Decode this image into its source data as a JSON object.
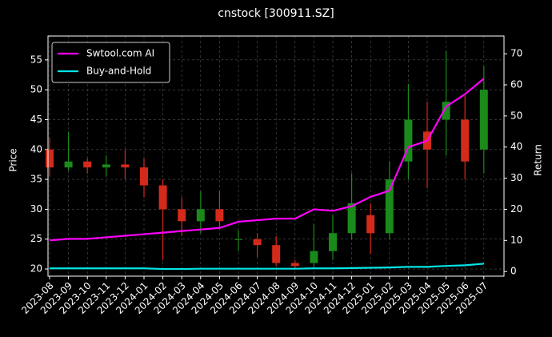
{
  "chart_data": {
    "type": "candlestick",
    "title": "cnstock [300911.SZ]",
    "ylabel": "Price",
    "y2label": "Return",
    "categories": [
      "2023-08",
      "2023-09",
      "2023-10",
      "2023-11",
      "2023-12",
      "2024-01",
      "2024-02",
      "2024-03",
      "2024-04",
      "2024-05",
      "2024-06",
      "2024-07",
      "2024-08",
      "2024-09",
      "2024-10",
      "2024-11",
      "2024-12",
      "2025-01",
      "2025-02",
      "2025-03",
      "2025-04",
      "2025-05",
      "2025-06",
      "2025-07"
    ],
    "candles": {
      "open": [
        40,
        37,
        38,
        37,
        37.5,
        37,
        34,
        30,
        28,
        30,
        25,
        25,
        24,
        21,
        21,
        23,
        26,
        29,
        26,
        38,
        43,
        45,
        45,
        40
      ],
      "high": [
        42,
        43,
        38.5,
        39,
        40,
        38.5,
        35,
        32,
        33,
        33,
        26.5,
        26,
        25.5,
        21.5,
        27.5,
        29,
        36,
        31,
        38,
        51,
        48,
        56.5,
        49,
        54
      ],
      "low": [
        35.5,
        36.5,
        36,
        35.5,
        35,
        32,
        21.5,
        25.5,
        26,
        27,
        23,
        22,
        20.5,
        20,
        20,
        21.5,
        25,
        22.5,
        25,
        35,
        33.5,
        39,
        35,
        36
      ],
      "close": [
        37,
        38,
        37,
        37.5,
        37,
        34,
        30,
        28,
        30,
        28,
        25,
        24,
        21,
        20.5,
        23,
        26,
        31,
        26,
        35,
        45,
        40,
        48,
        38,
        50
      ],
      "up_color": "#1a8a1a",
      "down_color": "#d42a1a"
    },
    "series": [
      {
        "name": "Swtool.com AI",
        "color": "#ff00ff",
        "axis": "y2",
        "values": [
          10,
          10.5,
          10.5,
          11,
          11.5,
          12,
          12.5,
          13,
          13.5,
          14,
          16,
          16.5,
          17,
          17,
          20,
          19.5,
          21,
          24,
          26,
          40,
          42,
          53,
          57,
          62
        ]
      },
      {
        "name": "Buy-and-Hold",
        "color": "#00e5e5",
        "axis": "y2",
        "values": [
          1,
          1,
          1,
          1,
          1,
          1,
          0.8,
          0.8,
          0.9,
          0.9,
          0.9,
          0.9,
          0.9,
          0.9,
          1,
          1,
          1.1,
          1.2,
          1.3,
          1.5,
          1.5,
          1.8,
          2,
          2.5
        ]
      }
    ],
    "ylim": [
      18.8,
      59.0
    ],
    "yticks": [
      20,
      25,
      30,
      35,
      40,
      45,
      50,
      55
    ],
    "y2lim": [
      -1.5,
      75.7
    ],
    "y2ticks": [
      0,
      10,
      20,
      30,
      40,
      50,
      60,
      70
    ],
    "grid": true,
    "legend": "upper left"
  }
}
